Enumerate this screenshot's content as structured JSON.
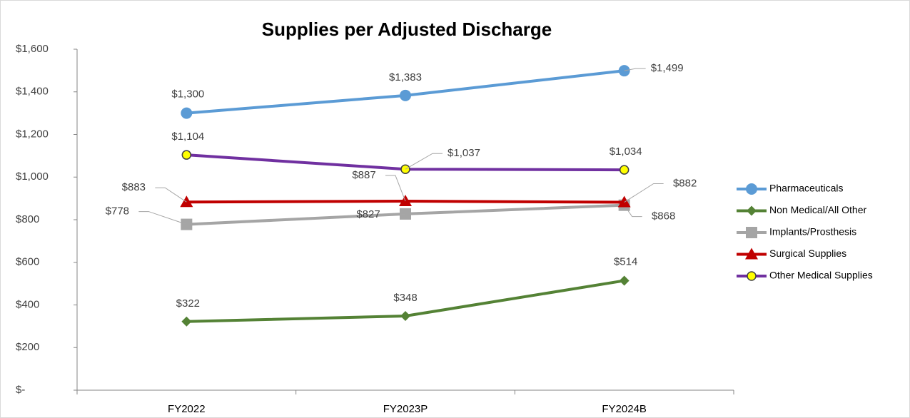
{
  "chart_data": {
    "type": "line",
    "title": "Supplies per Adjusted Discharge",
    "categories": [
      "FY2022",
      "FY2023P",
      "FY2024B"
    ],
    "ylim": [
      0,
      1600
    ],
    "yticks": [
      {
        "value": 0,
        "label": "$-"
      },
      {
        "value": 200,
        "label": "$200"
      },
      {
        "value": 400,
        "label": "$400"
      },
      {
        "value": 600,
        "label": "$600"
      },
      {
        "value": 800,
        "label": "$800"
      },
      {
        "value": 1000,
        "label": "$1,000"
      },
      {
        "value": 1200,
        "label": "$1,200"
      },
      {
        "value": 1400,
        "label": "$1,400"
      },
      {
        "value": 1600,
        "label": "$1,600"
      }
    ],
    "grid": false,
    "legend": "right",
    "series": [
      {
        "name": "Pharmaceuticals",
        "color": "#5b9bd5",
        "marker": "circle",
        "values": [
          1300,
          1383,
          1499
        ],
        "value_labels": [
          "$1,300",
          "$1,383",
          "$1,499"
        ]
      },
      {
        "name": "Non Medical/All Other",
        "color": "#548235",
        "marker": "diamond",
        "values": [
          322,
          348,
          514
        ],
        "value_labels": [
          "$322",
          "$348",
          "$514"
        ]
      },
      {
        "name": "Implants/Prosthesis",
        "color": "#a5a5a5",
        "marker": "square",
        "values": [
          778,
          827,
          868
        ],
        "value_labels": [
          "$778",
          "$827",
          "$868"
        ]
      },
      {
        "name": "Surgical Supplies",
        "color": "#c00000",
        "marker": "triangle",
        "values": [
          883,
          887,
          882
        ],
        "value_labels": [
          "$883",
          "$887",
          "$882"
        ]
      },
      {
        "name": "Other Medical Supplies",
        "color": "#7030a0",
        "marker": "circle-yellow",
        "values": [
          1104,
          1037,
          1034
        ],
        "value_labels": [
          "$1,104",
          "$1,037",
          "$1,034"
        ]
      }
    ]
  }
}
